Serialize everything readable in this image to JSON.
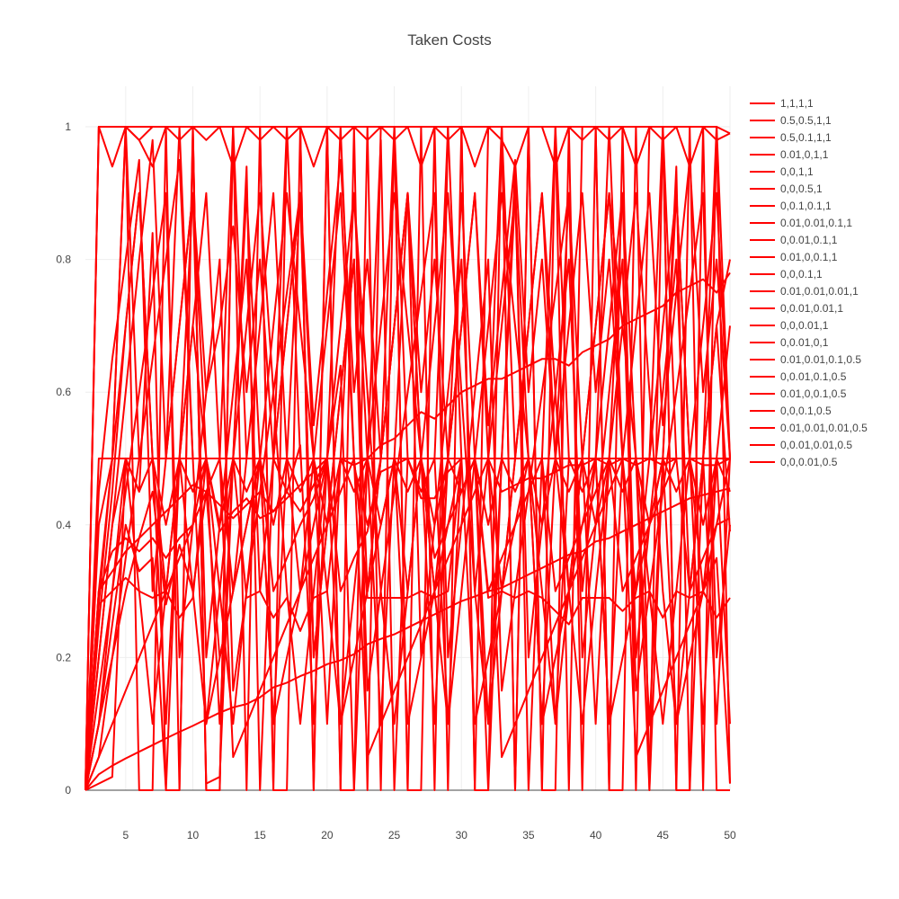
{
  "chart_data": {
    "type": "line",
    "title": "Taken Costs",
    "xlabel": "",
    "ylabel": "",
    "xlim": [
      2,
      50
    ],
    "ylim": [
      0,
      1
    ],
    "x_ticks": [
      5,
      10,
      15,
      20,
      25,
      30,
      35,
      40,
      45,
      50
    ],
    "y_ticks": [
      0,
      0.2,
      0.4,
      0.6,
      0.8,
      1
    ],
    "grid": true,
    "legend": "right",
    "line_color": "#ff0000",
    "x": [
      2,
      3,
      4,
      5,
      6,
      7,
      8,
      9,
      10,
      11,
      12,
      13,
      14,
      15,
      16,
      17,
      18,
      19,
      20,
      21,
      22,
      23,
      24,
      25,
      26,
      27,
      28,
      29,
      30,
      31,
      32,
      33,
      34,
      35,
      36,
      37,
      38,
      39,
      40,
      41,
      42,
      43,
      44,
      45,
      46,
      47,
      48,
      49,
      50
    ],
    "series": [
      {
        "name": "1,1,1,1",
        "values": [
          0,
          1,
          1,
          1,
          1,
          1,
          1,
          1,
          1,
          1,
          1,
          1,
          1,
          1,
          1,
          1,
          1,
          1,
          1,
          1,
          1,
          1,
          1,
          1,
          1,
          1,
          1,
          1,
          1,
          1,
          1,
          1,
          1,
          1,
          1,
          1,
          1,
          1,
          1,
          1,
          1,
          1,
          1,
          1,
          1,
          1,
          1,
          1,
          0.99
        ]
      },
      {
        "name": "0.5,0.5,1,1",
        "values": [
          0,
          1,
          0.94,
          1,
          0.98,
          0.94,
          1,
          0.98,
          1,
          0.98,
          1,
          0.94,
          1,
          0.98,
          1,
          0.98,
          1,
          0.94,
          1,
          0.98,
          1,
          0.98,
          1,
          0.98,
          1,
          0.94,
          1,
          0.98,
          1,
          0.94,
          1,
          0.98,
          0.94,
          1,
          1,
          0.94,
          1,
          0.98,
          1,
          0.98,
          1,
          0.94,
          1,
          0.98,
          1,
          0.94,
          1,
          0.98,
          0.99
        ]
      },
      {
        "name": "0.5,0.1,1,1",
        "values": [
          0,
          0.5,
          0.5,
          1,
          0.5,
          0.5,
          0.5,
          1,
          0.5,
          0.5,
          0.5,
          1,
          0.5,
          0.5,
          0.5,
          1,
          0.5,
          0.5,
          0.5,
          1,
          0.5,
          0.5,
          0.5,
          1,
          0.5,
          0.5,
          0.5,
          1,
          0.5,
          0.5,
          0.5,
          1,
          0.5,
          0.5,
          0.5,
          1,
          0.5,
          0.5,
          0.5,
          1,
          0.5,
          0.5,
          0.5,
          1,
          0.5,
          0.5,
          0.5,
          1,
          0.5
        ]
      },
      {
        "name": "0.01,0,1,1",
        "values": [
          0,
          1,
          1,
          1,
          0.98,
          1,
          1,
          1,
          1,
          0,
          0,
          1,
          1,
          1,
          0,
          1,
          1,
          0,
          1,
          0,
          1,
          0,
          1,
          1,
          0,
          1,
          0,
          1,
          1,
          0,
          1,
          1,
          0,
          1,
          0,
          1,
          0,
          1,
          1,
          0,
          1,
          0,
          1,
          1,
          0,
          1,
          0,
          1,
          0.01
        ]
      },
      {
        "name": "0,0,1,1",
        "values": [
          0,
          0.4,
          0.5,
          1,
          0,
          0,
          1,
          0,
          1,
          0,
          0,
          1,
          0,
          1,
          0,
          0,
          1,
          0,
          1,
          0,
          0,
          1,
          0,
          1,
          0,
          0,
          1,
          0,
          1,
          0,
          0,
          1,
          0,
          1,
          0,
          0,
          1,
          0,
          1,
          0,
          0,
          1,
          0,
          1,
          0,
          0,
          1,
          0,
          0
        ]
      },
      {
        "name": "0,0,0.5,1",
        "values": [
          0,
          0.28,
          0.5,
          0.5,
          0.5,
          0.5,
          0.5,
          0.5,
          0.5,
          0.5,
          0.5,
          0.5,
          0.5,
          0.5,
          0.5,
          0.5,
          0.5,
          0.5,
          0.5,
          0.5,
          0.5,
          0.5,
          0.5,
          0.5,
          0.5,
          0.5,
          0.5,
          0.5,
          0.5,
          0.5,
          0.5,
          0.5,
          0.5,
          0.5,
          0.5,
          0.5,
          0.5,
          0.5,
          0.5,
          0.5,
          0.5,
          0.5,
          0.5,
          0.5,
          0.5,
          0.5,
          0.5,
          0.5,
          0.5
        ]
      },
      {
        "name": "0,0.1,0.1,1",
        "values": [
          0,
          0.2,
          0.4,
          0.6,
          0.8,
          0.98,
          0.5,
          0.7,
          0.9,
          0.6,
          0.7,
          0.85,
          0.6,
          0.8,
          0.5,
          0.7,
          0.9,
          0.55,
          0.75,
          0.95,
          0.6,
          0.8,
          0.5,
          0.7,
          0.9,
          0.6,
          0.8,
          0.5,
          0.7,
          0.9,
          0.55,
          0.75,
          0.95,
          0.6,
          0.8,
          0.5,
          0.7,
          0.9,
          0.6,
          0.8,
          0.5,
          0.7,
          0.9,
          0.55,
          0.75,
          0.95,
          0.6,
          0.8,
          0.5
        ]
      },
      {
        "name": "0.01,0.01,0.1,1",
        "values": [
          0,
          0.3,
          0.5,
          0.7,
          0.9,
          0.5,
          0.3,
          0.5,
          0.7,
          0.9,
          0.5,
          0.3,
          0.5,
          0.7,
          0.9,
          0.5,
          0.3,
          0.5,
          0.7,
          0.9,
          0.5,
          0.3,
          0.5,
          0.7,
          0.9,
          0.5,
          0.3,
          0.5,
          0.7,
          0.9,
          0.5,
          0.3,
          0.5,
          0.7,
          0.9,
          0.5,
          0.3,
          0.5,
          0.7,
          0.9,
          0.5,
          0.3,
          0.5,
          0.7,
          0.9,
          0.5,
          0.3,
          0.5,
          0.7
        ]
      },
      {
        "name": "0,0.01,0.1,1",
        "values": [
          0,
          0.1,
          0.3,
          0.5,
          0.3,
          0.1,
          0.3,
          0.5,
          0.7,
          0.5,
          0.3,
          0.1,
          0.3,
          0.5,
          0.7,
          0.9,
          0.7,
          0.5,
          0.3,
          0.1,
          0.3,
          0.5,
          0.7,
          0.9,
          0.7,
          0.5,
          0.3,
          0.1,
          0.3,
          0.5,
          0.7,
          0.9,
          0.7,
          0.5,
          0.3,
          0.1,
          0.3,
          0.5,
          0.7,
          0.9,
          0.7,
          0.5,
          0.3,
          0.1,
          0.3,
          0.5,
          0.7,
          0.9,
          0.5
        ]
      },
      {
        "name": "0.01,0,0.1,1",
        "values": [
          0,
          0.45,
          0.65,
          0.8,
          0.95,
          0.3,
          0.5,
          0.7,
          0.9,
          0.2,
          0.4,
          0.6,
          0.8,
          0.3,
          0.5,
          0.7,
          0.9,
          0.2,
          0.4,
          0.6,
          0.8,
          0.3,
          0.5,
          0.7,
          0.9,
          0.2,
          0.4,
          0.6,
          0.8,
          0.3,
          0.5,
          0.7,
          0.9,
          0.2,
          0.4,
          0.6,
          0.8,
          0.3,
          0.5,
          0.7,
          0.9,
          0.2,
          0.4,
          0.6,
          0.8,
          0.3,
          0.5,
          0.7,
          0.8
        ]
      },
      {
        "name": "0,0,0.1,1",
        "values": [
          0,
          0.25,
          0.45,
          0.7,
          0.9,
          0.5,
          0.1,
          0.5,
          0.9,
          0.5,
          0.1,
          0.5,
          0.9,
          0.5,
          0.1,
          0.5,
          0.9,
          0.5,
          0.1,
          0.5,
          0.9,
          0.5,
          0.1,
          0.5,
          0.9,
          0.5,
          0.1,
          0.5,
          0.9,
          0.5,
          0.1,
          0.5,
          0.9,
          0.5,
          0.1,
          0.5,
          0.9,
          0.5,
          0.1,
          0.5,
          0.9,
          0.5,
          0.1,
          0.5,
          0.9,
          0.5,
          0.1,
          0.5,
          0.1
        ]
      },
      {
        "name": "0.01,0.01,0.01,1",
        "values": [
          0,
          0.3,
          0.33,
          0.36,
          0.38,
          0.4,
          0.42,
          0.44,
          0.46,
          0.45,
          0.43,
          0.41,
          0.43,
          0.45,
          0.42,
          0.44,
          0.46,
          0.48,
          0.5,
          0.5,
          0.49,
          0.5,
          0.52,
          0.53,
          0.55,
          0.57,
          0.56,
          0.58,
          0.6,
          0.61,
          0.62,
          0.62,
          0.63,
          0.64,
          0.65,
          0.65,
          0.64,
          0.66,
          0.67,
          0.68,
          0.7,
          0.71,
          0.72,
          0.73,
          0.75,
          0.76,
          0.77,
          0.75,
          0.78
        ]
      },
      {
        "name": "0,0.01,0.01,1",
        "values": [
          0,
          0.05,
          0.2,
          0.35,
          0.5,
          0.65,
          0.8,
          0.95,
          0.5,
          0.1,
          0.3,
          0.5,
          0.7,
          0.9,
          0.6,
          0.3,
          0.1,
          0.3,
          0.5,
          0.7,
          0.9,
          0.6,
          0.3,
          0.1,
          0.3,
          0.5,
          0.7,
          0.9,
          0.6,
          0.3,
          0.1,
          0.3,
          0.5,
          0.7,
          0.9,
          0.6,
          0.3,
          0.1,
          0.3,
          0.5,
          0.7,
          0.9,
          0.6,
          0.3,
          0.1,
          0.3,
          0.5,
          0.7,
          0.39
        ]
      },
      {
        "name": "0,0,0.01,1",
        "values": [
          0,
          0.01,
          0.02,
          0.5,
          0.45,
          0.84,
          0,
          0,
          0.99,
          0.01,
          0.02,
          0.5,
          0.94,
          0,
          0.5,
          0.45,
          0.52,
          0.1,
          0.5,
          0.64,
          0,
          0.5,
          0.98,
          0,
          0.5,
          0.45,
          0.5,
          0.1,
          0.5,
          0.5,
          0,
          0.5,
          0.94,
          0,
          0.5,
          0.1,
          0.5,
          0.45,
          0.5,
          0.1,
          0.5,
          0.5,
          0,
          0.5,
          0.94,
          0,
          0.5,
          0.1,
          0.5
        ]
      },
      {
        "name": "0,0.01,0,1",
        "values": [
          0,
          0.15,
          0.3,
          0.45,
          0.6,
          0.75,
          0.9,
          0.2,
          0.4,
          0.6,
          0.8,
          0.15,
          0.3,
          0.45,
          0.6,
          0.75,
          0.9,
          0.2,
          0.4,
          0.6,
          0.8,
          0.15,
          0.3,
          0.45,
          0.6,
          0.75,
          0.9,
          0.2,
          0.4,
          0.6,
          0.8,
          0.15,
          0.3,
          0.45,
          0.6,
          0.75,
          0.9,
          0.2,
          0.4,
          0.6,
          0.8,
          0.15,
          0.3,
          0.45,
          0.6,
          0.75,
          0.9,
          0.2,
          0.4
        ]
      },
      {
        "name": "0.01,0.01,0.1,0.5",
        "values": [
          0,
          0.28,
          0.3,
          0.32,
          0.3,
          0.29,
          0.3,
          0.26,
          0.29,
          0.5,
          0.5,
          0.5,
          0.29,
          0.3,
          0.26,
          0.29,
          0.24,
          0.29,
          0.3,
          0.5,
          0.5,
          0.29,
          0.29,
          0.29,
          0.29,
          0.3,
          0.29,
          0.3,
          0.5,
          0.5,
          0.29,
          0.3,
          0.29,
          0.3,
          0.29,
          0.27,
          0.25,
          0.29,
          0.29,
          0.29,
          0.27,
          0.29,
          0.3,
          0.26,
          0.3,
          0.29,
          0.3,
          0.26,
          0.29
        ]
      },
      {
        "name": "0,0.01,0.1,0.5",
        "values": [
          0,
          0.3,
          0.36,
          0.38,
          0.36,
          0.38,
          0.35,
          0.38,
          0.4,
          0.5,
          0.39,
          0.42,
          0.44,
          0.41,
          0.42,
          0.45,
          0.42,
          0.46,
          0.5,
          0.5,
          0.49,
          0.4,
          0.48,
          0.49,
          0.5,
          0.44,
          0.44,
          0.48,
          0.5,
          0.5,
          0.5,
          0.45,
          0.46,
          0.47,
          0.47,
          0.48,
          0.49,
          0.49,
          0.5,
          0.49,
          0.5,
          0.49,
          0.5,
          0.49,
          0.5,
          0.5,
          0.49,
          0.49,
          0.5
        ]
      },
      {
        "name": "0.01,0,0.1,0.5",
        "values": [
          0,
          0.2,
          0.4,
          0.5,
          0.45,
          0.5,
          0.4,
          0.5,
          0.45,
          0.5,
          0.4,
          0.5,
          0.45,
          0.5,
          0.4,
          0.5,
          0.45,
          0.5,
          0.4,
          0.5,
          0.45,
          0.5,
          0.4,
          0.5,
          0.45,
          0.5,
          0.4,
          0.5,
          0.45,
          0.5,
          0.4,
          0.5,
          0.45,
          0.5,
          0.4,
          0.5,
          0.45,
          0.5,
          0.4,
          0.5,
          0.45,
          0.5,
          0.4,
          0.5,
          0.45,
          0.5,
          0.4,
          0.5,
          0.45
        ]
      },
      {
        "name": "0,0,0.1,0.5",
        "values": [
          0,
          0.1,
          0.25,
          0.4,
          0.33,
          0.35,
          0,
          0.5,
          0.3,
          0.1,
          0.2,
          0.3,
          0.4,
          0.5,
          0.1,
          0.2,
          0.3,
          0.4,
          0.5,
          0.1,
          0.2,
          0.3,
          0.4,
          0.5,
          0.1,
          0.2,
          0.3,
          0.4,
          0.5,
          0.1,
          0.2,
          0.3,
          0.4,
          0.5,
          0.1,
          0.2,
          0.3,
          0.4,
          0.5,
          0.1,
          0.2,
          0.3,
          0.4,
          0.5,
          0.1,
          0.2,
          0.3,
          0.4,
          0.5
        ]
      },
      {
        "name": "0.01,0.01,0.01,0.5",
        "values": [
          0,
          0.024,
          0.037,
          0.048,
          0.058,
          0.068,
          0.078,
          0.088,
          0.097,
          0.107,
          0.117,
          0.125,
          0.13,
          0.14,
          0.155,
          0.162,
          0.172,
          0.18,
          0.19,
          0.196,
          0.205,
          0.22,
          0.228,
          0.235,
          0.245,
          0.255,
          0.265,
          0.275,
          0.285,
          0.292,
          0.3,
          0.305,
          0.315,
          0.325,
          0.335,
          0.345,
          0.355,
          0.36,
          0.375,
          0.38,
          0.39,
          0.4,
          0.41,
          0.42,
          0.43,
          0.44,
          0.445,
          0.45,
          0.455
        ]
      },
      {
        "name": "0,0.01,0.01,0.5",
        "values": [
          0,
          0.1,
          0.2,
          0.3,
          0.38,
          0.45,
          0.28,
          0.37,
          0.3,
          0.45,
          0.2,
          0.3,
          0.4,
          0.5,
          0.3,
          0.35,
          0.4,
          0.44,
          0.5,
          0.3,
          0.35,
          0.39,
          0.5,
          0.5,
          0.3,
          0.5,
          0.35,
          0.4,
          0.45,
          0.5,
          0.3,
          0.35,
          0.4,
          0.45,
          0.5,
          0.3,
          0.35,
          0.4,
          0.45,
          0.5,
          0.3,
          0.35,
          0.4,
          0.45,
          0.5,
          0.3,
          0.35,
          0.4,
          0.41
        ]
      },
      {
        "name": "0,0,0.01,0.5",
        "values": [
          0,
          0.05,
          0.1,
          0.15,
          0.2,
          0.25,
          0.3,
          0.35,
          0.4,
          0.45,
          0.5,
          0.05,
          0.1,
          0.15,
          0.2,
          0.25,
          0.3,
          0.35,
          0.4,
          0.45,
          0.5,
          0.05,
          0.1,
          0.15,
          0.2,
          0.25,
          0.3,
          0.35,
          0.4,
          0.45,
          0.5,
          0.05,
          0.1,
          0.15,
          0.2,
          0.25,
          0.3,
          0.35,
          0.4,
          0.45,
          0.5,
          0.05,
          0.1,
          0.15,
          0.2,
          0.25,
          0.3,
          0.35,
          0.01
        ]
      }
    ]
  }
}
